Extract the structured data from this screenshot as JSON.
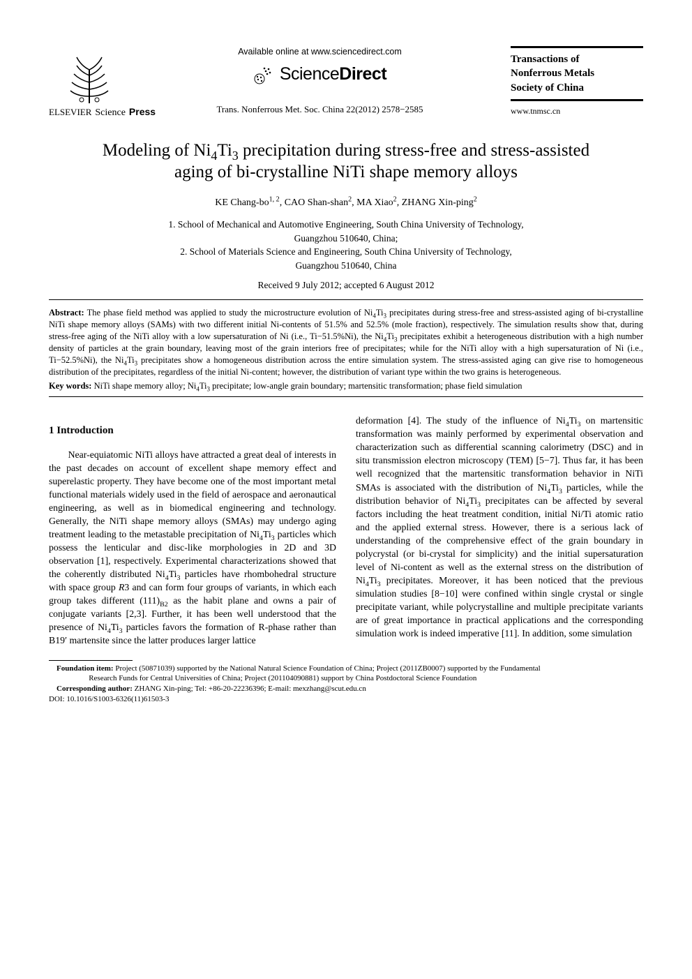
{
  "header": {
    "elsevier_label": "ELSEVIER",
    "science_label": "Science",
    "press_label": "Press",
    "available_online": "Available online at www.sciencedirect.com",
    "sd_science": "Science",
    "sd_direct": "Direct",
    "trans_line": "Trans. Nonferrous Met. Soc. China 22(2012) 2578−2585",
    "journal_title_line1": "Transactions of",
    "journal_title_line2": "Nonferrous Metals",
    "journal_title_line3": "Society of China",
    "journal_url": "www.tnmsc.cn"
  },
  "title_html": "Modeling of Ni<sub>4</sub>Ti<sub>3</sub> precipitation during stress-free and stress-assisted aging of bi-crystalline NiTi shape memory alloys",
  "authors_html": "KE Chang-bo<sup>1, 2</sup>, CAO Shan-shan<sup>2</sup>, MA Xiao<sup>2</sup>, ZHANG Xin-ping<sup>2</sup>",
  "affiliations_html": "1. School of Mechanical and Automotive Engineering, South China University of Technology,<br>Guangzhou 510640, China;<br>2. School of Materials Science and Engineering, South China University of Technology,<br>Guangzhou 510640, China",
  "received": "Received 9 July 2012; accepted 6 August 2012",
  "abstract": {
    "label": "Abstract:",
    "text_html": " The phase field method was applied to study the microstructure evolution of Ni<sub>4</sub>Ti<sub>3</sub> precipitates during stress-free and stress-assisted aging of bi-crystalline NiTi shape memory alloys (SAMs) with two different initial Ni-contents of 51.5% and 52.5% (mole fraction), respectively. The simulation results show that, during stress-free aging of the NiTi alloy with a low supersaturation of Ni (i.e., Ti−51.5%Ni), the Ni<sub>4</sub>Ti<sub>3</sub> precipitates exhibit a heterogeneous distribution with a high number density of particles at the grain boundary, leaving most of the grain interiors free of precipitates; while for the NiTi alloy with a high supersaturation of Ni (i.e., Ti−52.5%Ni), the Ni<sub>4</sub>Ti<sub>3</sub> precipitates show a homogeneous distribution across the entire simulation system. The stress-assisted aging can give rise to homogeneous distribution of the precipitates, regardless of the initial Ni-content; however, the distribution of variant type within the two grains is heterogeneous."
  },
  "keywords": {
    "label": "Key words:",
    "text_html": " NiTi shape memory alloy; Ni<sub>4</sub>Ti<sub>3</sub> precipitate; low-angle grain boundary; martensitic transformation; phase field simulation"
  },
  "section1_heading": "1 Introduction",
  "col_left_html": "Near-equiatomic NiTi alloys have attracted a great deal of interests in the past decades on account of excellent shape memory effect and superelastic property. They have become one of the most important metal functional materials widely used in the field of aerospace and aeronautical engineering, as well as in biomedical engineering and technology. Generally, the NiTi shape memory alloys (SMAs) may undergo aging treatment leading to the metastable precipitation of Ni<sub>4</sub>Ti<sub>3</sub> particles which possess the lenticular and disc-like morphologies in 2D and 3D observation [1], respectively. Experimental characterizations showed that the coherently distributed Ni<sub>4</sub>Ti<sub>3</sub> particles have rhombohedral structure with space group <i>R</i>3 and can form four groups of variants, in which each group takes different (111)<sub>B2</sub> as the habit plane and owns a pair of conjugate variants [2,3]. Further, it has been well understood that the presence of Ni<sub>4</sub>Ti<sub>3</sub> particles favors the formation of R-phase rather than B19′ martensite since the latter produces larger lattice",
  "col_right_html": "deformation [4]. The study of the influence of Ni<sub>4</sub>Ti<sub>3</sub> on martensitic transformation was mainly performed by experimental observation and characterization such as differential scanning calorimetry (DSC) and in situ transmission electron microscopy (TEM) [5−7]. Thus far, it has been well recognized that the martensitic transformation behavior in NiTi SMAs is associated with the distribution of Ni<sub>4</sub>Ti<sub>3</sub> particles, while the distribution behavior of Ni<sub>4</sub>Ti<sub>3</sub> precipitates can be affected by several factors including the heat treatment condition, initial Ni/Ti atomic ratio and the applied external stress. However, there is a serious lack of understanding of the comprehensive effect of the grain boundary in polycrystal (or bi-crystal for simplicity) and the initial supersaturation level of Ni-content as well as the external stress on the distribution of Ni<sub>4</sub>Ti<sub>3</sub> precipitates. Moreover, it has been noticed that the previous simulation studies [8−10] were confined within single crystal or single precipitate variant, while polycrystalline and multiple precipitate variants are of great importance in practical applications and the corresponding simulation work is indeed imperative [11]. In addition, some simulation",
  "footer": {
    "foundation_label": "Foundation item:",
    "foundation_text": " Project (50871039) supported by the National Natural Science Foundation of China; Project (2011ZB0007) supported by the Fundamental",
    "foundation_cont": "Research Funds for Central Universities of China; Project (201104090881) support by China Postdoctoral Science Foundation",
    "corresponding_label": "Corresponding author:",
    "corresponding_text": " ZHANG Xin-ping; Tel: +86-20-22236396; E-mail: mexzhang@scut.edu.cn",
    "doi": "DOI: 10.1016/S1003-6326(11)61503-3"
  },
  "colors": {
    "text": "#000000",
    "background": "#ffffff",
    "rule": "#000000"
  }
}
